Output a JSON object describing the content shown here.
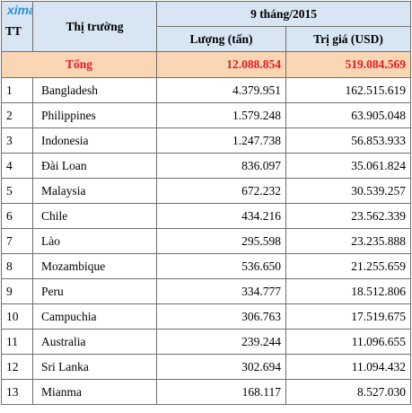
{
  "watermark": "ximang.vn",
  "header": {
    "tt": "TT",
    "market": "Thị trường",
    "period": "9 tháng/2015",
    "volume": "Lượng (tấn)",
    "value": "Trị giá (USD)"
  },
  "total": {
    "label": "Tổng",
    "volume": "12.088.854",
    "value": "519.084.569"
  },
  "rows": [
    {
      "tt": "1",
      "market": "Bangladesh",
      "volume": "4.379.951",
      "value": "162.515.619"
    },
    {
      "tt": "2",
      "market": "Philippines",
      "volume": "1.579.248",
      "value": "63.905.048"
    },
    {
      "tt": "3",
      "market": "Indonesia",
      "volume": "1.247.738",
      "value": "56.853.933"
    },
    {
      "tt": "4",
      "market": "Đài Loan",
      "volume": "836.097",
      "value": "35.061.824"
    },
    {
      "tt": "5",
      "market": "Malaysia",
      "volume": "672.232",
      "value": "30.539.257"
    },
    {
      "tt": "6",
      "market": "Chile",
      "volume": "434.216",
      "value": "23.562.339"
    },
    {
      "tt": "7",
      "market": "Lào",
      "volume": "295.598",
      "value": "23.235.888"
    },
    {
      "tt": "8",
      "market": "Mozambique",
      "volume": "536.650",
      "value": "21.255.659"
    },
    {
      "tt": "9",
      "market": "Peru",
      "volume": "334.777",
      "value": "18.512.806"
    },
    {
      "tt": "10",
      "market": "Campuchia",
      "volume": "306.763",
      "value": "17.519.675"
    },
    {
      "tt": "11",
      "market": "Australia",
      "volume": "239.244",
      "value": "11.096.655"
    },
    {
      "tt": "12",
      "market": "Sri Lanka",
      "volume": "302.694",
      "value": "11.094.432"
    },
    {
      "tt": "13",
      "market": "Mianma",
      "volume": "168.117",
      "value": "8.527.030"
    }
  ]
}
